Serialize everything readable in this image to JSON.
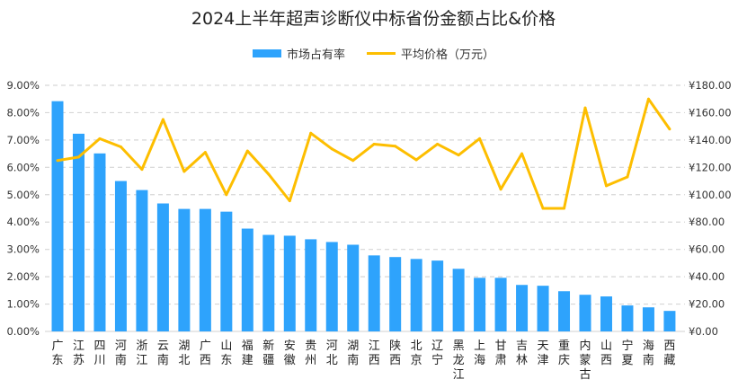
{
  "chart_data": {
    "type": "bar+line",
    "title": "2024上半年超声诊断仪中标省份金额占比&价格",
    "categories": [
      "广东",
      "江苏",
      "四川",
      "河南",
      "浙江",
      "云南",
      "湖北",
      "广西",
      "山东",
      "福建",
      "新疆",
      "安徽",
      "贵州",
      "河北",
      "湖南",
      "江西",
      "陕西",
      "北京",
      "辽宁",
      "黑龙江",
      "上海",
      "甘肃",
      "吉林",
      "天津",
      "重庆",
      "内蒙古",
      "山西",
      "宁夏",
      "海南",
      "西藏"
    ],
    "series": [
      {
        "name": "市场占有率",
        "type": "bar",
        "axis": "left",
        "color": "#2ea3fc",
        "values": [
          8.42,
          7.23,
          6.51,
          5.5,
          5.17,
          4.68,
          4.48,
          4.48,
          4.38,
          3.76,
          3.53,
          3.5,
          3.37,
          3.27,
          3.17,
          2.78,
          2.72,
          2.65,
          2.59,
          2.29,
          1.96,
          1.96,
          1.7,
          1.67,
          1.47,
          1.34,
          1.28,
          0.95,
          0.88,
          0.75
        ]
      },
      {
        "name": "平均价格（万元）",
        "type": "line",
        "axis": "right",
        "color": "#fdbe00",
        "values": [
          125,
          127.5,
          141,
          135,
          118.5,
          155,
          117,
          131,
          100,
          132,
          115,
          95.5,
          145,
          133.5,
          125,
          137,
          135.5,
          125.5,
          137,
          129,
          141,
          104,
          130,
          90,
          90,
          163.5,
          106.5,
          113,
          170,
          148
        ]
      }
    ],
    "y_left": {
      "range": [
        0,
        9
      ],
      "ticks": [
        "0.00%",
        "1.00%",
        "2.00%",
        "3.00%",
        "4.00%",
        "5.00%",
        "6.00%",
        "7.00%",
        "8.00%",
        "9.00%"
      ]
    },
    "y_right": {
      "range": [
        0,
        180
      ],
      "ticks": [
        "¥0.00",
        "¥20.00",
        "¥40.00",
        "¥60.00",
        "¥80.00",
        "¥100.00",
        "¥120.00",
        "¥140.00",
        "¥160.00",
        "¥180.00"
      ]
    },
    "grid": "horizontal dashed",
    "legend_position": "top"
  }
}
